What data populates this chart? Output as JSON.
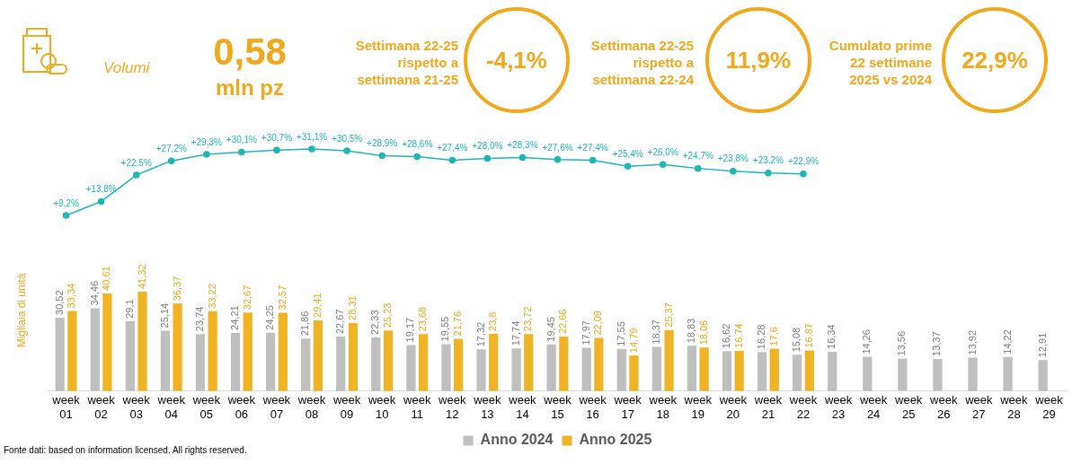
{
  "chart_data": [
    {
      "type": "other",
      "annotations": [
        "Volumi",
        "0,58",
        "mln pz",
        "Settimana 22-25 rispetto a settimana 21-25",
        "-4,1%",
        "Settimana 22-25 rispetto a settimana 22-24",
        "11,9%",
        "Cumulato prime 22 settimane 2025 vs 2024",
        "22,9%"
      ]
    },
    {
      "type": "line",
      "tick_labels": false,
      "marker": "circle",
      "categories": [
        null,
        null,
        null,
        null,
        null,
        null,
        null,
        null,
        null,
        null,
        null,
        null,
        null,
        null,
        null,
        null,
        null,
        null,
        null,
        null,
        null,
        null,
        null,
        null,
        null,
        null,
        null,
        null,
        null
      ],
      "series": [
        {
          "color": "#1fb5b5",
          "values": [
            9.2,
            13.8,
            22.5,
            27.2,
            29.3,
            30.1,
            30.7,
            31.1,
            30.5,
            28.9,
            28.6,
            27.4,
            28.0,
            28.3,
            27.6,
            27.4,
            25.4,
            26.0,
            24.7,
            23.8,
            23.2,
            22.9,
            null,
            null,
            null,
            null,
            null,
            null,
            null
          ],
          "value_labels": [
            "+9,2%",
            "+13,8%",
            "+22,5%",
            "+27,2%",
            "+29,3%",
            "+30,1%",
            "+30,7%",
            "+31,1%",
            "+30,5%",
            "+28,9%",
            "+28,6%",
            "+27,4%",
            "+28,0%",
            "+28,3%",
            "+27,6%",
            "+27,4%",
            "+25,4%",
            "+26,0%",
            "+24,7%",
            "+23,8%",
            "+23,2%",
            "+22,9%",
            null,
            null,
            null,
            null,
            null,
            null,
            null
          ]
        }
      ]
    },
    {
      "type": "bar",
      "ylabel": "Migliaia di unità",
      "legend": "bottom",
      "tick_labels": "x",
      "categories": [
        "week 01",
        "week 02",
        "week 03",
        "week 04",
        "week 05",
        "week 06",
        "week 07",
        "week 08",
        "week 09",
        "week 10",
        "week 11",
        "week 12",
        "week 13",
        "week 14",
        "week 15",
        "week 16",
        "week 17",
        "week 18",
        "week 19",
        "week 20",
        "week 21",
        "week 22",
        "week 23",
        "week 24",
        "week 25",
        "week 26",
        "week 27",
        "week 28",
        "week 29"
      ],
      "series": [
        {
          "name": "Anno 2024",
          "color": "#bfbfbf",
          "values": [
            30.52,
            34.46,
            29.1,
            25.14,
            23.74,
            24.21,
            24.25,
            21.86,
            22.67,
            22.33,
            19.17,
            19.55,
            17.32,
            17.74,
            19.45,
            17.97,
            17.55,
            18.37,
            18.83,
            16.62,
            16.28,
            15.08,
            16.34,
            14.26,
            13.56,
            13.37,
            13.92,
            14.22,
            12.91
          ],
          "value_labels": [
            "30,52",
            "34,46",
            "29,1",
            "25,14",
            "23,74",
            "24,21",
            "24,25",
            "21,86",
            "22,67",
            "22,33",
            "19,17",
            "19,55",
            "17,32",
            "17,74",
            "19,45",
            "17,97",
            "17,55",
            "18,37",
            "18,83",
            "16,62",
            "16,28",
            "15,08",
            "16,34",
            "14,26",
            "13,56",
            "13,37",
            "13,92",
            "14,22",
            "12,91"
          ]
        },
        {
          "name": "Anno 2025",
          "color": "#f0b323",
          "values": [
            33.34,
            40.61,
            41.32,
            36.37,
            33.22,
            32.67,
            32.57,
            29.41,
            28.31,
            25.23,
            23.68,
            21.76,
            23.8,
            23.72,
            22.66,
            22.09,
            14.79,
            25.37,
            18.06,
            16.74,
            17.6,
            16.87,
            null,
            null,
            null,
            null,
            null,
            null,
            null
          ],
          "value_labels": [
            "33,34",
            "40,61",
            "41,32",
            "36,37",
            "33,22",
            "32,67",
            "32,57",
            "29,41",
            "28,31",
            "25,23",
            "23,68",
            "21,76",
            "23,8",
            "23,72",
            "22,66",
            "22,09",
            "14,79",
            "25,37",
            "18,06",
            "16,74",
            "17,6",
            "16,87",
            null,
            null,
            null,
            null,
            null,
            null,
            null
          ]
        }
      ],
      "annotations": [
        "Fonte dati: based on information licensed. All rights reserved."
      ]
    }
  ]
}
